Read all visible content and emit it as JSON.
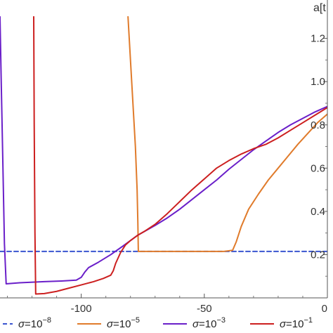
{
  "chart_data": {
    "type": "line",
    "title": "",
    "xlabel": "",
    "ylabel": "a[t",
    "xlim": [
      -133,
      0
    ],
    "ylim": [
      0,
      1.28
    ],
    "x_ticks": [
      -100,
      -50,
      0
    ],
    "x_tick_labels": [
      "-100",
      "-50",
      "0"
    ],
    "y_ticks": [
      0.2,
      0.4,
      0.6,
      0.8,
      1.0,
      1.2
    ],
    "y_tick_labels": [
      "0.2",
      "0.4",
      "0.6",
      "0.8",
      "1.0",
      "1.2"
    ],
    "y_axis_position": "right",
    "grid": false,
    "legend_position": "bottom",
    "series": [
      {
        "name": "σ=10^−8",
        "legend_text": "σ=10",
        "legend_exp": "−8",
        "color": "#3a55d0",
        "dash": "6,4",
        "points": [
          [
            -133,
            0.215
          ],
          [
            0,
            0.215
          ]
        ]
      },
      {
        "name": "σ=10^−5",
        "legend_text": "σ=10",
        "legend_exp": "−5",
        "color": "#e07b2b",
        "dash": "",
        "points": [
          [
            -81,
            1.3
          ],
          [
            -80,
            1.1
          ],
          [
            -79,
            0.9
          ],
          [
            -78,
            0.7
          ],
          [
            -77.3,
            0.5
          ],
          [
            -77,
            0.35
          ],
          [
            -76.8,
            0.215
          ],
          [
            -70,
            0.215
          ],
          [
            -60,
            0.215
          ],
          [
            -50,
            0.215
          ],
          [
            -42,
            0.215
          ],
          [
            -38.5,
            0.22
          ],
          [
            -37,
            0.26
          ],
          [
            -35,
            0.33
          ],
          [
            -32,
            0.41
          ],
          [
            -28,
            0.48
          ],
          [
            -24,
            0.545
          ],
          [
            -20,
            0.6
          ],
          [
            -16,
            0.655
          ],
          [
            -12,
            0.71
          ],
          [
            -8,
            0.76
          ],
          [
            -4,
            0.81
          ],
          [
            0,
            0.85
          ]
        ]
      },
      {
        "name": "σ=10^−3",
        "legend_text": "σ=10",
        "legend_exp": "−3",
        "color": "#6a1fc9",
        "dash": "",
        "points": [
          [
            -133,
            1.3
          ],
          [
            -132.5,
            1.0
          ],
          [
            -131.8,
            0.6
          ],
          [
            -131.2,
            0.25
          ],
          [
            -130.5,
            0.065
          ],
          [
            -125,
            0.07
          ],
          [
            -115,
            0.075
          ],
          [
            -108,
            0.078
          ],
          [
            -102,
            0.082
          ],
          [
            -100,
            0.095
          ],
          [
            -98.5,
            0.12
          ],
          [
            -97,
            0.14
          ],
          [
            -93,
            0.165
          ],
          [
            -88,
            0.2
          ],
          [
            -83,
            0.24
          ],
          [
            -77,
            0.29
          ],
          [
            -70,
            0.335
          ],
          [
            -65,
            0.37
          ],
          [
            -60,
            0.41
          ],
          [
            -55,
            0.455
          ],
          [
            -50,
            0.5
          ],
          [
            -45,
            0.545
          ],
          [
            -40,
            0.595
          ],
          [
            -35,
            0.64
          ],
          [
            -30,
            0.685
          ],
          [
            -25,
            0.725
          ],
          [
            -20,
            0.765
          ],
          [
            -15,
            0.8
          ],
          [
            -10,
            0.83
          ],
          [
            -5,
            0.86
          ],
          [
            0,
            0.885
          ]
        ]
      },
      {
        "name": "σ=10^−1",
        "legend_text": "σ=10",
        "legend_exp": "−1",
        "color": "#cc1f1f",
        "dash": "",
        "points": [
          [
            -119.3,
            1.3
          ],
          [
            -119.1,
            0.8
          ],
          [
            -118.8,
            0.3
          ],
          [
            -118.5,
            0.018
          ],
          [
            -115,
            0.02
          ],
          [
            -110,
            0.03
          ],
          [
            -105,
            0.045
          ],
          [
            -100,
            0.06
          ],
          [
            -95,
            0.075
          ],
          [
            -91,
            0.09
          ],
          [
            -88,
            0.105
          ],
          [
            -87,
            0.125
          ],
          [
            -86,
            0.16
          ],
          [
            -84,
            0.21
          ],
          [
            -82,
            0.245
          ],
          [
            -80,
            0.265
          ],
          [
            -77,
            0.29
          ],
          [
            -74,
            0.31
          ],
          [
            -70,
            0.34
          ],
          [
            -65,
            0.39
          ],
          [
            -60,
            0.445
          ],
          [
            -55,
            0.5
          ],
          [
            -50,
            0.55
          ],
          [
            -45,
            0.6
          ],
          [
            -40,
            0.635
          ],
          [
            -35,
            0.665
          ],
          [
            -30,
            0.69
          ],
          [
            -25,
            0.71
          ],
          [
            -20,
            0.74
          ],
          [
            -15,
            0.775
          ],
          [
            -10,
            0.81
          ],
          [
            -5,
            0.845
          ],
          [
            0,
            0.88
          ]
        ]
      }
    ]
  }
}
